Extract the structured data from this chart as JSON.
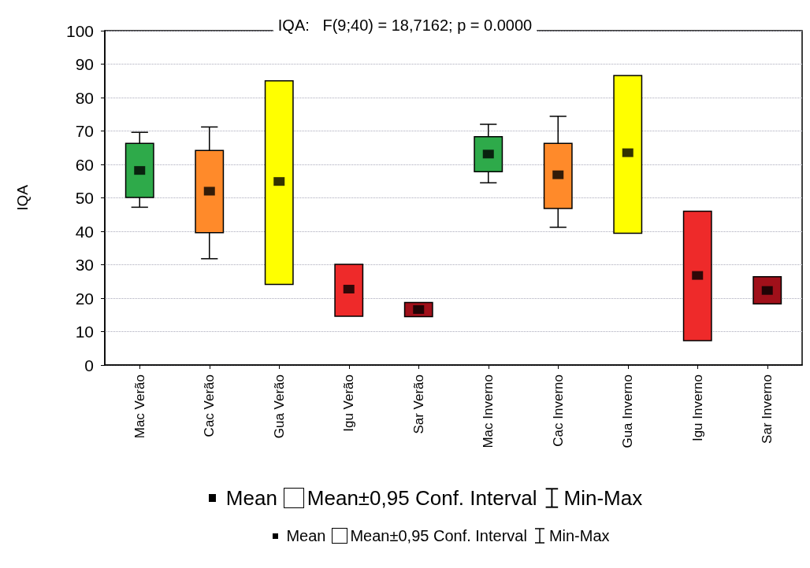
{
  "chart_data": {
    "type": "box",
    "title": "IQA:   F(9;40) = 18,7162; p = 0.0000",
    "ylabel": "IQA",
    "categories": [
      "Mac Verão",
      "Cac Verão",
      "Gua Verão",
      "Igu Verão",
      "Sar Verão",
      "Mac Inverno",
      "Cac Inverno",
      "Gua Inverno",
      "Igu Inverno",
      "Sar Inverno"
    ],
    "boxes": [
      {
        "low": 47.2,
        "q1": 50.1,
        "q3": 66.3,
        "high": 69.6,
        "mean": 58.2
      },
      {
        "low": 31.8,
        "q1": 39.6,
        "q3": 64.2,
        "high": 71.2,
        "mean": 52.0
      },
      {
        "low": 24.1,
        "q1": 24.1,
        "q3": 85.0,
        "high": 85.0,
        "mean": 54.9
      },
      {
        "low": 14.6,
        "q1": 14.6,
        "q3": 30.1,
        "high": 30.1,
        "mean": 22.7
      },
      {
        "low": 14.5,
        "q1": 14.5,
        "q3": 18.7,
        "high": 18.7,
        "mean": 16.6
      },
      {
        "low": 54.5,
        "q1": 57.8,
        "q3": 68.3,
        "high": 72.0,
        "mean": 63.1
      },
      {
        "low": 41.2,
        "q1": 46.8,
        "q3": 66.3,
        "high": 74.4,
        "mean": 56.9
      },
      {
        "low": 39.4,
        "q1": 39.4,
        "q3": 86.6,
        "high": 86.6,
        "mean": 63.5
      },
      {
        "low": 7.3,
        "q1": 7.3,
        "q3": 46.0,
        "high": 46.0,
        "mean": 26.8
      },
      {
        "low": 18.3,
        "q1": 18.3,
        "q3": 26.4,
        "high": 26.4,
        "mean": 22.3
      }
    ],
    "colors": [
      "#2eaa4a",
      "#ff8a2a",
      "#ffff00",
      "#ee2a2a",
      "#a0101a",
      "#2eaa4a",
      "#ff8a2a",
      "#ffff00",
      "#ee2a2a",
      "#a0101a"
    ],
    "ylim": [
      0,
      100
    ],
    "yticks": [
      0,
      10,
      20,
      30,
      40,
      50,
      60,
      70,
      80,
      90,
      100
    ],
    "grid": "y",
    "marker": "square",
    "annotations": [
      "Mean",
      "Mean±0,95 Conf. Interval",
      "Min-Max",
      "Mean",
      "Mean±0,95 Conf. Interval",
      "Min-Max"
    ]
  }
}
